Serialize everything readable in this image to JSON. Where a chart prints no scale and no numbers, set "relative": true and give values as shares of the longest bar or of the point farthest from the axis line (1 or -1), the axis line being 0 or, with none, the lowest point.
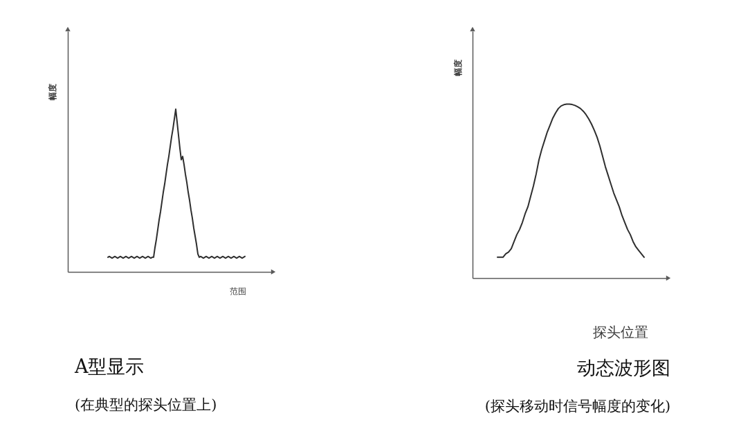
{
  "chart_data": [
    {
      "type": "line",
      "relative": true,
      "title": "A型显示",
      "subtitle": "(在典型的探头位置上)",
      "xlabel": "范围",
      "ylabel": "幅度",
      "line_style": "solid",
      "categories": [
        null,
        null,
        null,
        null,
        null,
        null,
        null,
        null,
        null,
        null,
        null,
        null,
        null,
        null,
        null,
        null,
        null,
        null,
        null,
        null,
        null,
        null,
        null,
        null,
        null,
        null,
        null,
        null,
        null,
        null,
        null,
        null,
        null,
        null,
        null,
        null,
        null,
        null,
        null,
        null,
        null,
        null,
        null,
        null,
        null,
        null,
        null,
        null,
        null,
        null,
        null,
        null,
        null,
        null,
        null,
        null,
        null,
        null,
        null,
        null,
        null,
        null,
        null,
        null,
        null,
        null,
        null,
        null,
        null,
        null,
        null,
        null,
        null,
        null,
        null,
        null,
        null,
        null,
        null,
        null,
        null,
        null,
        null,
        null,
        null,
        null,
        null,
        null,
        null,
        null,
        null,
        null,
        null,
        null,
        null,
        null,
        null,
        null,
        null,
        null,
        null,
        null,
        null,
        null,
        null,
        null,
        null,
        null,
        null,
        null,
        null,
        null,
        null,
        null,
        null,
        null,
        null,
        null,
        null,
        null,
        null,
        null,
        null,
        null,
        null,
        null,
        null,
        null,
        null,
        null,
        null,
        null,
        null,
        null,
        null,
        null,
        null,
        null,
        null,
        null,
        null,
        null,
        null,
        null,
        null,
        null,
        null,
        null
      ],
      "series": [
        {
          "color": "#2e2e2e",
          "values": [
            null,
            null,
            null,
            null,
            null,
            null,
            null,
            null,
            null,
            null,
            null,
            null,
            null,
            null,
            null,
            null,
            null,
            null,
            null,
            null,
            null,
            null,
            null,
            null,
            null,
            null,
            null,
            null,
            null,
            0.09,
            0.095,
            0.09,
            0.085,
            0.09,
            0.095,
            0.09,
            0.085,
            0.09,
            0.095,
            0.09,
            0.085,
            0.09,
            0.095,
            0.09,
            0.085,
            0.09,
            0.095,
            0.09,
            0.085,
            0.09,
            0.095,
            0.09,
            0.085,
            0.09,
            0.095,
            0.09,
            0.085,
            0.09,
            0.095,
            0.09,
            0.085,
            0.09,
            0.09,
            0.15,
            0.2,
            0.26,
            0.32,
            0.37,
            0.43,
            0.49,
            0.54,
            0.6,
            0.66,
            0.71,
            0.77,
            0.83,
            0.88,
            0.94,
            1,
            0.92,
            0.84,
            0.76,
            0.69,
            0.71,
            0.66,
            0.6,
            0.55,
            0.49,
            0.44,
            0.38,
            0.33,
            0.27,
            0.22,
            0.17,
            0.11,
            0.09,
            0.095,
            0.09,
            0.085,
            0.09,
            0.095,
            0.09,
            0.085,
            0.09,
            0.095,
            0.09,
            0.085,
            0.09,
            0.095,
            0.09,
            0.085,
            0.09,
            0.095,
            0.09,
            0.085,
            0.09,
            0.095,
            0.09,
            0.085,
            0.09,
            0.095,
            0.09,
            0.085,
            0.09,
            0.095,
            0.09,
            0.085,
            0.09,
            0.095,
            null,
            null,
            null,
            null,
            null,
            null,
            null,
            null,
            null,
            null,
            null,
            null,
            null,
            null,
            null,
            null,
            null,
            null,
            null
          ]
        }
      ]
    },
    {
      "type": "line",
      "relative": true,
      "title": "动态波形图",
      "subtitle": "(探头移动时信号幅度的变化)",
      "xlabel": "探头位置",
      "ylabel": "幅度",
      "line_style": "solid",
      "categories": [
        null,
        null,
        null,
        null,
        null,
        null,
        null,
        null,
        null,
        null,
        null,
        null,
        null,
        null,
        null,
        null,
        null,
        null,
        null,
        null,
        null,
        null,
        null,
        null,
        null,
        null,
        null,
        null,
        null,
        null,
        null,
        null,
        null,
        null,
        null,
        null,
        null,
        null,
        null,
        null,
        null,
        null,
        null,
        null,
        null,
        null,
        null,
        null,
        null,
        null,
        null,
        null,
        null,
        null,
        null,
        null,
        null,
        null,
        null,
        null,
        null,
        null,
        null,
        null,
        null,
        null,
        null,
        null,
        null,
        null,
        null
      ],
      "series": [
        {
          "color": "#2e2e2e",
          "values": [
            null,
            null,
            null,
            null,
            null,
            null,
            null,
            null,
            null,
            0.12,
            0.12,
            0.12,
            0.14,
            0.15,
            0.17,
            0.21,
            0.25,
            0.28,
            0.32,
            0.37,
            0.41,
            0.47,
            0.53,
            0.6,
            0.68,
            0.74,
            0.79,
            0.84,
            0.88,
            0.92,
            0.95,
            0.975,
            0.99,
            0.997,
            1,
            1,
            0.998,
            0.993,
            0.985,
            0.975,
            0.96,
            0.94,
            0.915,
            0.885,
            0.85,
            0.81,
            0.76,
            0.7,
            0.64,
            0.59,
            0.54,
            0.49,
            0.45,
            0.41,
            0.36,
            0.32,
            0.28,
            0.25,
            0.21,
            0.18,
            0.16,
            0.14,
            0.12,
            null,
            null,
            null,
            null,
            null,
            null,
            null,
            null
          ]
        }
      ]
    }
  ]
}
